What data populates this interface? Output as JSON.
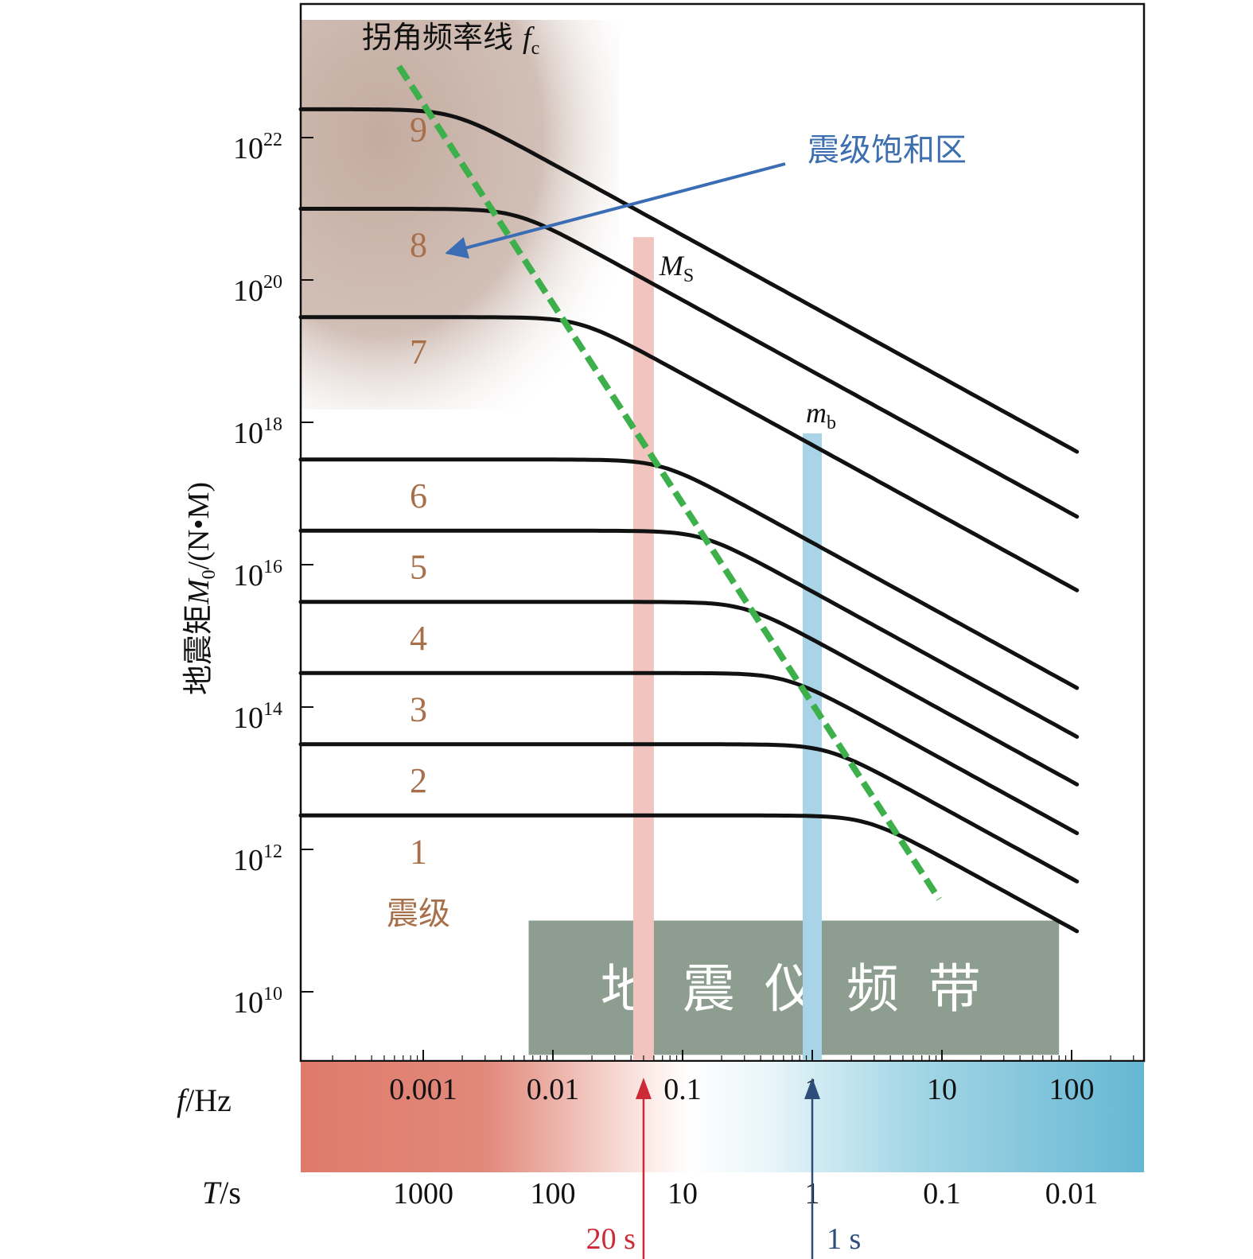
{
  "chart_data": {
    "type": "line",
    "x_scale": "log",
    "y_scale": "log",
    "xlim": [
      0.0001,
      600
    ],
    "ylim": [
      1000000000.0,
      1e+24
    ],
    "ylabel": {
      "prefix": "地震矩",
      "var": "M",
      "sub": "0",
      "unit": "/(N•M)"
    },
    "y_ticks": [
      {
        "value": 10000000000.0,
        "base": "10",
        "exp": "10"
      },
      {
        "value": 1000000000000.0,
        "base": "10",
        "exp": "12"
      },
      {
        "value": 100000000000000.0,
        "base": "10",
        "exp": "14"
      },
      {
        "value": 1e+16,
        "base": "10",
        "exp": "16"
      },
      {
        "value": 1e+18,
        "base": "10",
        "exp": "18"
      },
      {
        "value": 1e+20,
        "base": "10",
        "exp": "20"
      },
      {
        "value": 1e+22,
        "base": "10",
        "exp": "22"
      }
    ],
    "f_axis": {
      "label_var": "f",
      "label_unit": "/Hz",
      "ticks": [
        {
          "value": 0.001,
          "label": "0.001"
        },
        {
          "value": 0.01,
          "label": "0.01"
        },
        {
          "value": 0.1,
          "label": "0.1"
        },
        {
          "value": 1,
          "label": "1"
        },
        {
          "value": 10,
          "label": "10"
        },
        {
          "value": 100,
          "label": "100"
        }
      ]
    },
    "t_axis": {
      "label_var": "T",
      "label_unit": "/s",
      "ticks": [
        {
          "freq": 0.001,
          "label": "1000"
        },
        {
          "freq": 0.01,
          "label": "100"
        },
        {
          "freq": 0.1,
          "label": "10"
        },
        {
          "freq": 1,
          "label": "1"
        },
        {
          "freq": 10,
          "label": "0.1"
        },
        {
          "freq": 100,
          "label": "0.01"
        }
      ]
    },
    "series": [
      {
        "name": "1",
        "plateau": 3000000000000.0,
        "corner_hz": 2.6,
        "x_end": 110
      },
      {
        "name": "2",
        "plateau": 30000000000000.0,
        "corner_hz": 1.3,
        "x_end": 110
      },
      {
        "name": "3",
        "plateau": 300000000000000.0,
        "corner_hz": 0.62,
        "x_end": 110
      },
      {
        "name": "4",
        "plateau": 3000000000000000.0,
        "corner_hz": 0.3,
        "x_end": 110
      },
      {
        "name": "5",
        "plateau": 3e+16,
        "corner_hz": 0.14,
        "x_end": 110
      },
      {
        "name": "6",
        "plateau": 3e+17,
        "corner_hz": 0.068,
        "x_end": 110
      },
      {
        "name": "7",
        "plateau": 3e+19,
        "corner_hz": 0.016,
        "x_end": 110
      },
      {
        "name": "8",
        "plateau": 1e+21,
        "corner_hz": 0.0052,
        "x_end": 110
      },
      {
        "name": "9",
        "plateau": 2.5e+22,
        "corner_hz": 0.0017,
        "x_end": 110
      }
    ],
    "corner_frequency_line": {
      "label_prefix": "拐角频率线",
      "label_var": "f",
      "label_sub": "c",
      "points": [
        [
          0.00065,
          1e+23
        ],
        [
          9.5,
          200000000000.0
        ]
      ]
    },
    "bands": [
      {
        "name": "Ms",
        "label_var": "M",
        "label_sub": "S",
        "freq": 0.05,
        "top": 4e+20,
        "color": "#f2c4bf"
      },
      {
        "name": "mb",
        "label_var": "m",
        "label_sub": "b",
        "freq": 1.0,
        "top": 7e+17,
        "color": "#a9d3e6"
      }
    ],
    "magnitude_title": "震级",
    "saturation_label": "震级饱和区",
    "seismometer_band_label": "地 震 仪 频 带",
    "seismometer_band": {
      "x_from": 0.0065,
      "x_to": 80,
      "y_from": 1300000000.0,
      "y_to": 100000000000.0
    },
    "period_markers": [
      {
        "label": "20 s",
        "freq": 0.05,
        "color": "#cc2a36"
      },
      {
        "label": "1 s",
        "freq": 1.0,
        "color": "#2f4d7a"
      }
    ],
    "colors": {
      "curve": "#111111",
      "corner_line": "#3db04b",
      "magnitude_text": "#a8704a",
      "saturation_text": "#3d6fb0",
      "saturation_arrow": "#3a6db4",
      "seismometer_box": "#8d9e91",
      "shade": "#c4aba0",
      "red": "#e07a6c",
      "blue": "#65b7d4"
    }
  }
}
